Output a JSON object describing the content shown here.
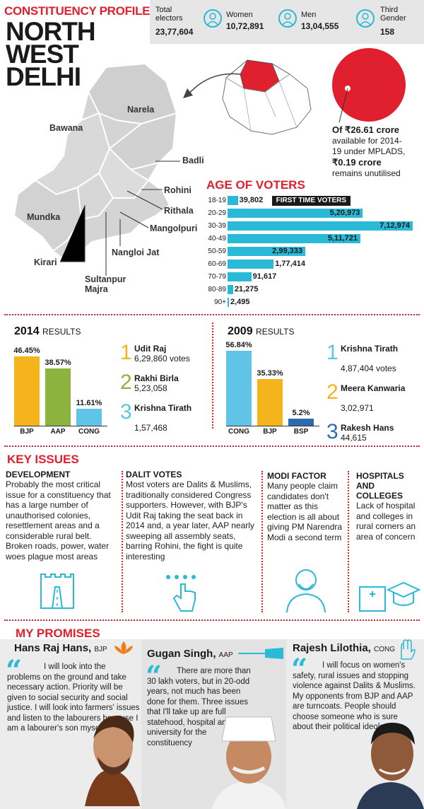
{
  "header": {
    "kicker": "CONSTITUENCY PROFILE",
    "title_lines": [
      "NORTH",
      "WEST",
      "DELHI"
    ]
  },
  "electors": {
    "total_label": "Total electors",
    "total_value": "23,77,604",
    "women_label": "Women",
    "women_value": "10,72,891",
    "men_label": "Men",
    "men_value": "13,04,555",
    "third_label": "Third Gender",
    "third_value": "158",
    "icons": [
      "woman-icon",
      "man-icon",
      "third-gender-icon"
    ]
  },
  "map": {
    "areas": [
      "Narela",
      "Bawana",
      "Badli",
      "Rohini",
      "Rithala",
      "Mangolpuri",
      "Mundka",
      "Nangloi Jat",
      "Kirari",
      "Sultanpur Majra"
    ]
  },
  "mplads": {
    "line1": "Of ₹26.61 crore",
    "line2": "available for 2014-",
    "line3": "19 under MPLADS,",
    "line4": "₹0.19 crore",
    "line5": "remains unutilised",
    "accent": "#e0202e"
  },
  "age": {
    "heading": "AGE OF VOTERS",
    "first_time_label": "FIRST TIME VOTERS",
    "rows": [
      {
        "label": "18-19",
        "value": 39802,
        "text": "39,802"
      },
      {
        "label": "20-29",
        "value": 520973,
        "text": "5,20,973"
      },
      {
        "label": "30-39",
        "value": 712974,
        "text": "7,12,974"
      },
      {
        "label": "40-49",
        "value": 511721,
        "text": "5,11,721"
      },
      {
        "label": "50-59",
        "value": 299333,
        "text": "2,99,333"
      },
      {
        "label": "60-69",
        "value": 177414,
        "text": "1,77,414"
      },
      {
        "label": "70-79",
        "value": 91617,
        "text": "91,617"
      },
      {
        "label": "80-89",
        "value": 21275,
        "text": "21,275"
      },
      {
        "label": "90+",
        "value": 2495,
        "text": "2,495"
      }
    ]
  },
  "results2014": {
    "year": "2014",
    "word": "RESULTS",
    "bars": [
      {
        "party": "BJP",
        "pct": 46.45,
        "pct_text": "46.45%",
        "color": "#f5b31c"
      },
      {
        "party": "AAP",
        "pct": 38.57,
        "pct_text": "38.57%",
        "color": "#8db33f"
      },
      {
        "party": "CONG",
        "pct": 11.61,
        "pct_text": "11.61%",
        "color": "#5fc4e6"
      }
    ],
    "candidates": [
      {
        "num": "1",
        "name": "Udit Raj",
        "votes": "6,29,860 votes",
        "color": "#f5b31c"
      },
      {
        "num": "2",
        "name": "Rakhi Birla",
        "votes": "5,23,058",
        "color": "#8db33f"
      },
      {
        "num": "3",
        "name": "Krishna Tirath",
        "votes": "1,57,468",
        "color": "#5fc4e6"
      }
    ]
  },
  "results2009": {
    "year": "2009",
    "word": "RESULTS",
    "bars": [
      {
        "party": "CONG",
        "pct": 56.84,
        "pct_text": "56.84%",
        "color": "#5fc4e6"
      },
      {
        "party": "BJP",
        "pct": 35.33,
        "pct_text": "35.33%",
        "color": "#f5b31c"
      },
      {
        "party": "BSP",
        "pct": 5.2,
        "pct_text": "5.2%",
        "color": "#2b6cb0"
      }
    ],
    "candidates": [
      {
        "num": "1",
        "name": "Krishna Tirath",
        "votes": "4,87,404 votes",
        "color": "#5fc4e6"
      },
      {
        "num": "2",
        "name": "Meera Kanwaria",
        "votes": "3,02,971",
        "color": "#f5b31c"
      },
      {
        "num": "3",
        "name": "Rakesh Hans",
        "votes": "44,615",
        "color": "#2b6cb0"
      }
    ]
  },
  "issues": {
    "heading": "KEY ISSUES",
    "items": [
      {
        "title": "DEVELOPMENT",
        "body": "Probably the most critical issue for a constituency that has a large number of unauthorised colonies, resettlement areas and a considerable rural belt. Broken roads, power, water woes plague most areas",
        "icon": "road-icon"
      },
      {
        "title": "DALIT VOTES",
        "body": "Most voters are Dalits & Muslims, traditionally considered Congress supporters. However, with BJP's Udit Raj taking the seat back in 2014 and, a year later, AAP nearly sweeping all assembly seats, barring Rohini, the fight is quite interesting",
        "icon": "voting-finger-icon"
      },
      {
        "title": "MODI FACTOR",
        "body": "Many people claim candidates don't matter as this election is all about giving PM Narendra Modi a second term",
        "icon": "modi-icon"
      },
      {
        "title": "HOSPITALS AND COLLEGES",
        "body": "Lack of hospital and colleges in rural corners an area of concern",
        "icon": "hospital-college-icon"
      }
    ]
  },
  "promises": {
    "heading": "MY PROMISES",
    "items": [
      {
        "name": "Hans Raj Hans,",
        "party": "BJP",
        "quote": "I will look into the problems on the ground and take necessary action. Priority will be given to social security and social justice. I will look into farmers' issues and listen to the labourers because I am a labourer's son myself",
        "symbol": "lotus-icon"
      },
      {
        "name": "Gugan Singh,",
        "party": "AAP",
        "quote": "There are more than 30 lakh voters, but in 20-odd years, not much has been done for them. Three issues that I'll take up are full statehood, hospital and a university for the constituency",
        "symbol": "broom-icon"
      },
      {
        "name": "Rajesh Lilothia,",
        "party": "CONG",
        "quote": "I will focus on women's safety, rural issues and stopping violence against Dalits & Muslims. My opponents from BJP and AAP are turncoats. People should choose someone who is sure about their political ideology",
        "symbol": "hand-icon"
      }
    ]
  }
}
